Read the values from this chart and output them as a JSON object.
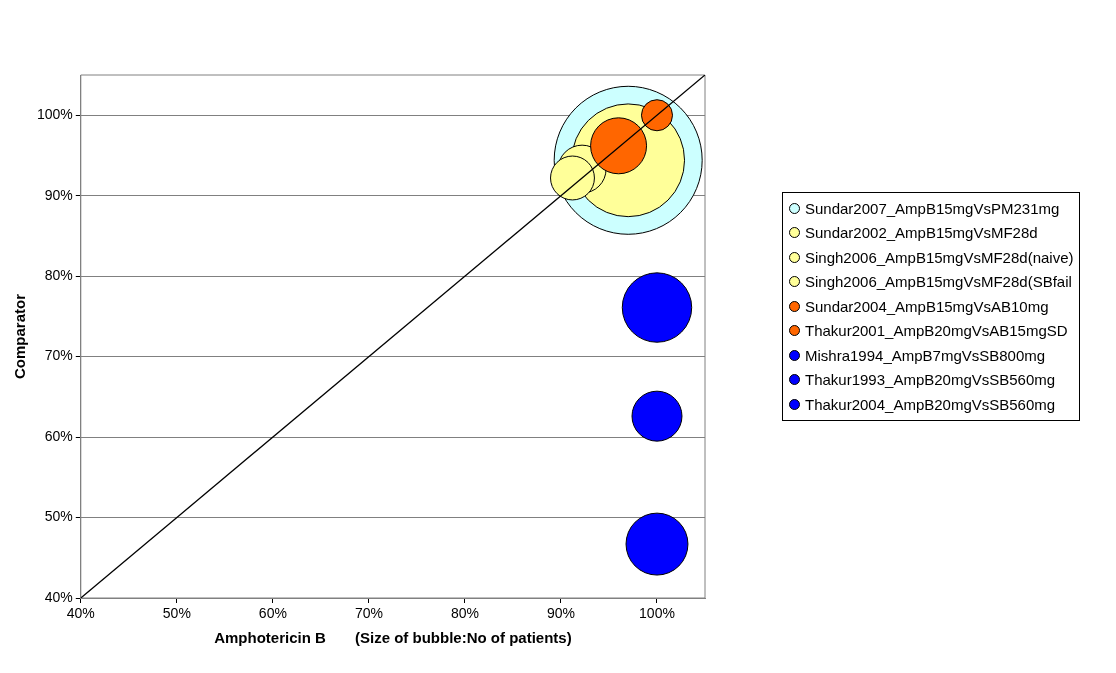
{
  "chart_data": {
    "type": "bubble",
    "xlabel": "Amphotericin B       (Size of bubble:No of patients)",
    "ylabel": "Comparator",
    "xlim": [
      40,
      105
    ],
    "ylim": [
      40,
      105
    ],
    "xticks": [
      {
        "value": 40,
        "label": "40%"
      },
      {
        "value": 50,
        "label": "50%"
      },
      {
        "value": 60,
        "label": "60%"
      },
      {
        "value": 70,
        "label": "70%"
      },
      {
        "value": 80,
        "label": "80%"
      },
      {
        "value": 90,
        "label": "90%"
      },
      {
        "value": 100,
        "label": "100%"
      }
    ],
    "yticks": [
      {
        "value": 40,
        "label": "40%"
      },
      {
        "value": 50,
        "label": "50%"
      },
      {
        "value": 60,
        "label": "60%"
      },
      {
        "value": 70,
        "label": "70%"
      },
      {
        "value": 80,
        "label": "80%"
      },
      {
        "value": 90,
        "label": "90%"
      },
      {
        "value": 100,
        "label": "100%"
      }
    ],
    "grid": "y",
    "legend": "right",
    "series": [
      {
        "name": "Sundar2007_AmpB15mgVsPM231mg",
        "color": "#ccffff",
        "x": [
          97
        ],
        "values": [
          94.4
        ],
        "sizes": [
          1
        ]
      },
      {
        "name": "Sundar2002_AmpB15mgVsMF28d",
        "color": "#ffff99",
        "x": [
          97
        ],
        "values": [
          94.4
        ],
        "sizes": [
          0.58
        ]
      },
      {
        "name": "Singh2006_AmpB15mgVsMF28d(naive)",
        "color": "#ffff99",
        "x": [
          92.2
        ],
        "values": [
          93.3
        ],
        "sizes": [
          0.105
        ]
      },
      {
        "name": "Singh2006_AmpB15mgVsMF28d(SBfail",
        "color": "#ffff99",
        "x": [
          91.2
        ],
        "values": [
          92.2
        ],
        "sizes": [
          0.088
        ]
      },
      {
        "name": "Sundar2004_AmpB15mgVsAB10mg",
        "color": "#ff6600",
        "x": [
          96
        ],
        "values": [
          96.2
        ],
        "sizes": [
          0.143
        ]
      },
      {
        "name": "Thakur2001_AmpB20mgVsAB15mgSD",
        "color": "#ff6600",
        "x": [
          100
        ],
        "values": [
          100
        ],
        "sizes": [
          0.044
        ]
      },
      {
        "name": "Mishra1994_AmpB7mgVsSB800mg",
        "color": "#0000ff",
        "x": [
          100
        ],
        "values": [
          76.1
        ],
        "sizes": [
          0.22
        ]
      },
      {
        "name": "Thakur1993_AmpB20mgVsSB560mg",
        "color": "#0000ff",
        "x": [
          100
        ],
        "values": [
          62.6
        ],
        "sizes": [
          0.114
        ]
      },
      {
        "name": "Thakur2004_AmpB20mgVsSB560mg",
        "color": "#0000ff",
        "x": [
          100
        ],
        "values": [
          46.7
        ],
        "sizes": [
          0.175
        ]
      },
      {
        "type": "line",
        "color": "#000000",
        "x": [
          40,
          105
        ],
        "values": [
          40,
          105
        ]
      }
    ]
  }
}
